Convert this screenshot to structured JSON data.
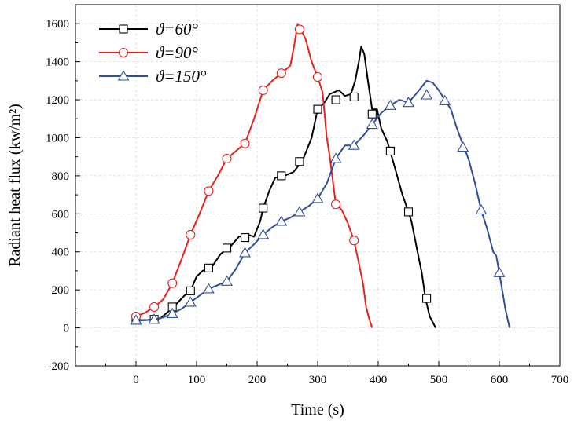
{
  "chart_data": {
    "type": "line",
    "title": "",
    "xlabel": "Time (s)",
    "ylabel": "Radiant heat flux (kw/m²)",
    "xlim": [
      -100,
      700
    ],
    "ylim": [
      -200,
      1700
    ],
    "x_ticks": [
      "0",
      "100",
      "200",
      "300",
      "400",
      "500",
      "600",
      "700"
    ],
    "y_ticks": [
      "-200",
      "0",
      "200",
      "400",
      "600",
      "800",
      "1000",
      "1200",
      "1400",
      "1600"
    ],
    "grid": true,
    "legend_position": "top-left",
    "series": [
      {
        "name": "ϑ=60°",
        "color": "#000000",
        "marker": "square",
        "line": [
          [
            0,
            40
          ],
          [
            20,
            42
          ],
          [
            40,
            50
          ],
          [
            55,
            90
          ],
          [
            65,
            120
          ],
          [
            80,
            170
          ],
          [
            90,
            195
          ],
          [
            100,
            270
          ],
          [
            110,
            300
          ],
          [
            125,
            320
          ],
          [
            140,
            390
          ],
          [
            155,
            425
          ],
          [
            170,
            480
          ],
          [
            185,
            490
          ],
          [
            195,
            480
          ],
          [
            205,
            560
          ],
          [
            210,
            630
          ],
          [
            220,
            720
          ],
          [
            230,
            790
          ],
          [
            245,
            800
          ],
          [
            260,
            820
          ],
          [
            275,
            880
          ],
          [
            290,
            1000
          ],
          [
            300,
            1150
          ],
          [
            310,
            1180
          ],
          [
            320,
            1230
          ],
          [
            335,
            1250
          ],
          [
            345,
            1220
          ],
          [
            355,
            1230
          ],
          [
            362,
            1300
          ],
          [
            368,
            1400
          ],
          [
            372,
            1480
          ],
          [
            377,
            1440
          ],
          [
            383,
            1300
          ],
          [
            390,
            1150
          ],
          [
            398,
            1150
          ],
          [
            405,
            1050
          ],
          [
            415,
            980
          ],
          [
            425,
            870
          ],
          [
            440,
            700
          ],
          [
            450,
            610
          ],
          [
            455,
            560
          ],
          [
            465,
            400
          ],
          [
            472,
            290
          ],
          [
            478,
            155
          ],
          [
            485,
            60
          ],
          [
            495,
            0
          ]
        ],
        "markers": [
          [
            0,
            40
          ],
          [
            30,
            45
          ],
          [
            60,
            110
          ],
          [
            90,
            195
          ],
          [
            120,
            315
          ],
          [
            150,
            420
          ],
          [
            180,
            475
          ],
          [
            210,
            630
          ],
          [
            240,
            800
          ],
          [
            270,
            875
          ],
          [
            300,
            1150
          ],
          [
            330,
            1200
          ],
          [
            360,
            1215
          ],
          [
            390,
            1125
          ],
          [
            420,
            930
          ],
          [
            450,
            610
          ],
          [
            480,
            155
          ]
        ]
      },
      {
        "name": "ϑ=90°",
        "color": "#e8221c",
        "marker": "circle",
        "line": [
          [
            0,
            60
          ],
          [
            15,
            80
          ],
          [
            30,
            110
          ],
          [
            45,
            150
          ],
          [
            60,
            235
          ],
          [
            75,
            360
          ],
          [
            90,
            490
          ],
          [
            105,
            600
          ],
          [
            120,
            720
          ],
          [
            135,
            800
          ],
          [
            150,
            890
          ],
          [
            165,
            930
          ],
          [
            180,
            970
          ],
          [
            195,
            1100
          ],
          [
            210,
            1250
          ],
          [
            225,
            1300
          ],
          [
            240,
            1340
          ],
          [
            255,
            1380
          ],
          [
            262,
            1500
          ],
          [
            267,
            1600
          ],
          [
            272,
            1570
          ],
          [
            280,
            1520
          ],
          [
            290,
            1400
          ],
          [
            300,
            1320
          ],
          [
            308,
            1240
          ],
          [
            315,
            1000
          ],
          [
            320,
            900
          ],
          [
            330,
            650
          ],
          [
            340,
            620
          ],
          [
            350,
            550
          ],
          [
            360,
            460
          ],
          [
            368,
            340
          ],
          [
            375,
            230
          ],
          [
            380,
            110
          ],
          [
            385,
            50
          ],
          [
            390,
            0
          ]
        ],
        "markers": [
          [
            0,
            60
          ],
          [
            30,
            110
          ],
          [
            60,
            235
          ],
          [
            90,
            490
          ],
          [
            120,
            720
          ],
          [
            150,
            890
          ],
          [
            180,
            970
          ],
          [
            210,
            1250
          ],
          [
            240,
            1340
          ],
          [
            270,
            1570
          ],
          [
            300,
            1320
          ],
          [
            330,
            650
          ],
          [
            360,
            460
          ]
        ]
      },
      {
        "name": "ϑ=150°",
        "color": "#2f4f9a",
        "marker": "triangle",
        "line": [
          [
            0,
            40
          ],
          [
            15,
            40
          ],
          [
            30,
            45
          ],
          [
            45,
            55
          ],
          [
            60,
            75
          ],
          [
            75,
            100
          ],
          [
            90,
            135
          ],
          [
            105,
            170
          ],
          [
            120,
            205
          ],
          [
            135,
            225
          ],
          [
            150,
            245
          ],
          [
            165,
            310
          ],
          [
            180,
            395
          ],
          [
            195,
            440
          ],
          [
            210,
            490
          ],
          [
            225,
            530
          ],
          [
            240,
            560
          ],
          [
            255,
            580
          ],
          [
            270,
            610
          ],
          [
            285,
            640
          ],
          [
            300,
            680
          ],
          [
            315,
            760
          ],
          [
            330,
            890
          ],
          [
            345,
            960
          ],
          [
            360,
            960
          ],
          [
            375,
            1010
          ],
          [
            390,
            1070
          ],
          [
            405,
            1130
          ],
          [
            420,
            1170
          ],
          [
            435,
            1200
          ],
          [
            450,
            1185
          ],
          [
            465,
            1240
          ],
          [
            480,
            1300
          ],
          [
            490,
            1290
          ],
          [
            500,
            1250
          ],
          [
            510,
            1200
          ],
          [
            520,
            1150
          ],
          [
            530,
            1050
          ],
          [
            538,
            980
          ],
          [
            542,
            950
          ],
          [
            550,
            880
          ],
          [
            560,
            760
          ],
          [
            570,
            620
          ],
          [
            580,
            520
          ],
          [
            590,
            400
          ],
          [
            595,
            380
          ],
          [
            600,
            290
          ],
          [
            610,
            100
          ],
          [
            617,
            0
          ]
        ],
        "markers": [
          [
            0,
            40
          ],
          [
            30,
            45
          ],
          [
            60,
            75
          ],
          [
            90,
            135
          ],
          [
            120,
            205
          ],
          [
            150,
            245
          ],
          [
            180,
            395
          ],
          [
            210,
            490
          ],
          [
            240,
            560
          ],
          [
            270,
            610
          ],
          [
            300,
            680
          ],
          [
            330,
            890
          ],
          [
            360,
            960
          ],
          [
            390,
            1070
          ],
          [
            420,
            1170
          ],
          [
            450,
            1185
          ],
          [
            480,
            1225
          ],
          [
            510,
            1195
          ],
          [
            540,
            950
          ],
          [
            570,
            620
          ],
          [
            600,
            290
          ]
        ]
      }
    ]
  }
}
